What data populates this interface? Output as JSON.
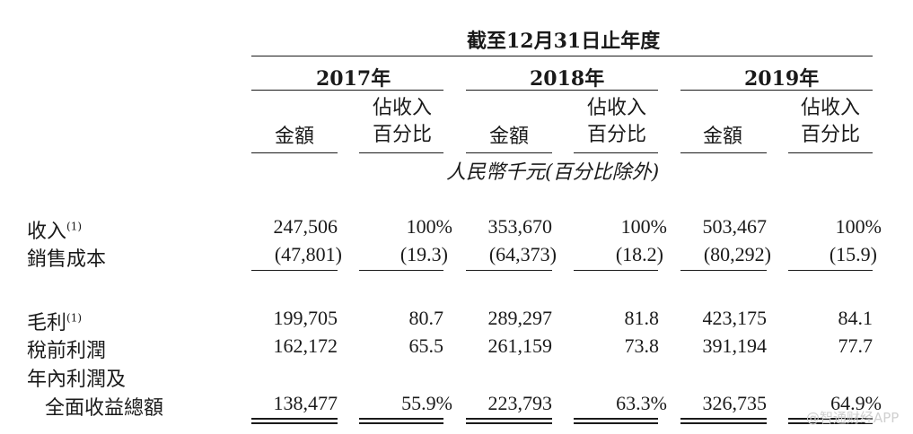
{
  "header": {
    "period_title": "截至12月31日止年度",
    "years": [
      "2017年",
      "2018年",
      "2019年"
    ],
    "col_amount": "金額",
    "col_pct_line1": "佔收入",
    "col_pct_line2": "百分比",
    "currency_note": "人民幣千元(百分比除外)"
  },
  "rows": [
    {
      "label": "收入",
      "note": "(1)",
      "values": [
        "247,506",
        "100%",
        "353,670",
        "100%",
        "503,467",
        "100%"
      ]
    },
    {
      "label": "銷售成本",
      "note": "",
      "values": [
        "(47,801)",
        "(19.3)",
        "(64,373)",
        "(18.2)",
        "(80,292)",
        "(15.9)"
      ]
    },
    {
      "label": "毛利",
      "note": "(1)",
      "values": [
        "199,705",
        "80.7",
        "289,297",
        "81.8",
        "423,175",
        "84.1"
      ]
    },
    {
      "label": "稅前利潤",
      "note": "",
      "values": [
        "162,172",
        "65.5",
        "261,159",
        "73.8",
        "391,194",
        "77.7"
      ]
    },
    {
      "label": "年內利潤及",
      "label2": "全面收益總額",
      "note": "",
      "values": [
        "138,477",
        "55.9%",
        "223,793",
        "63.3%",
        "326,735",
        "64.9%"
      ]
    }
  ],
  "watermark": "@智通财经APP"
}
